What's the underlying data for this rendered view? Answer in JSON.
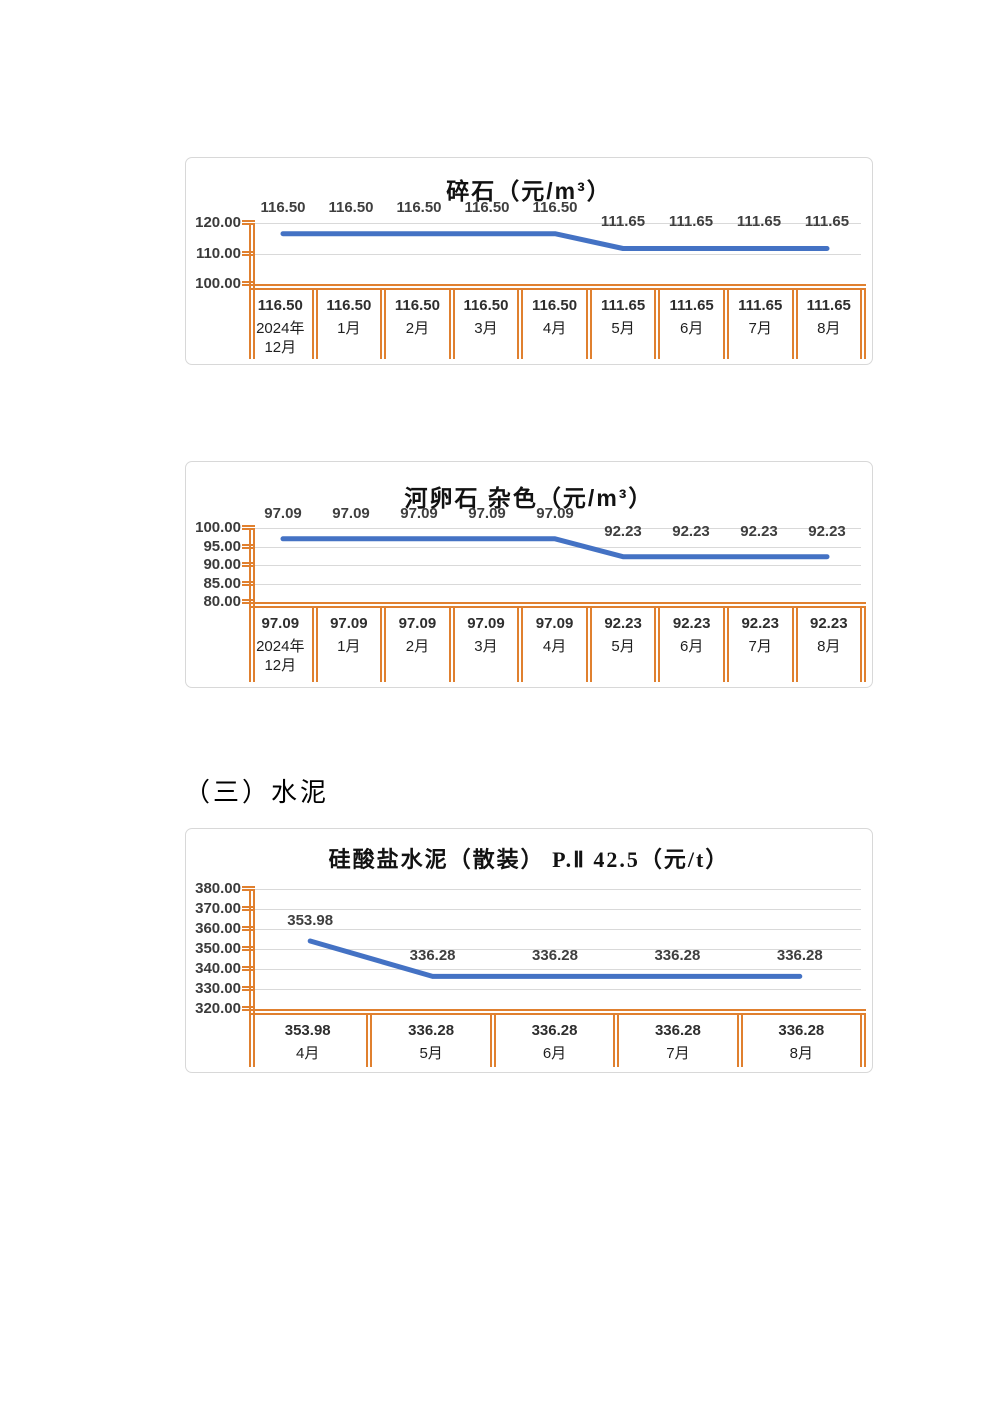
{
  "page": {
    "section_heading": "（三）水泥"
  },
  "colors": {
    "series_line": "#4472C4",
    "table_border": "#E0802F",
    "gridline": "#D9D9D9",
    "frame_border": "#D8D8D8"
  },
  "chart_data": [
    {
      "type": "line",
      "title": "碎石（元/m³）",
      "categories": [
        "2024年12月",
        "1月",
        "2月",
        "3月",
        "4月",
        "5月",
        "6月",
        "7月",
        "8月"
      ],
      "values": [
        116.5,
        116.5,
        116.5,
        116.5,
        116.5,
        111.65,
        111.65,
        111.65,
        111.65
      ],
      "value_labels": [
        "116.50",
        "116.50",
        "116.50",
        "116.50",
        "116.50",
        "111.65",
        "111.65",
        "111.65",
        "111.65"
      ],
      "y_ticks": [
        "120.00",
        "110.00",
        "100.00"
      ],
      "ylim": [
        100,
        120
      ],
      "grid": true,
      "legend": "none",
      "data_table_shown": true
    },
    {
      "type": "line",
      "title": "河卵石 杂色（元/m³）",
      "categories": [
        "2024年12月",
        "1月",
        "2月",
        "3月",
        "4月",
        "5月",
        "6月",
        "7月",
        "8月"
      ],
      "values": [
        97.09,
        97.09,
        97.09,
        97.09,
        97.09,
        92.23,
        92.23,
        92.23,
        92.23
      ],
      "value_labels": [
        "97.09",
        "97.09",
        "97.09",
        "97.09",
        "97.09",
        "92.23",
        "92.23",
        "92.23",
        "92.23"
      ],
      "y_ticks": [
        "100.00",
        "95.00",
        "90.00",
        "85.00",
        "80.00"
      ],
      "ylim": [
        80,
        100
      ],
      "grid": true,
      "legend": "none",
      "data_table_shown": true
    },
    {
      "type": "line",
      "title": "硅酸盐水泥（散装） P.Ⅱ 42.5（元/t）",
      "categories": [
        "4月",
        "5月",
        "6月",
        "7月",
        "8月"
      ],
      "values": [
        353.98,
        336.28,
        336.28,
        336.28,
        336.28
      ],
      "value_labels": [
        "353.98",
        "336.28",
        "336.28",
        "336.28",
        "336.28"
      ],
      "y_ticks": [
        "380.00",
        "370.00",
        "360.00",
        "350.00",
        "340.00",
        "330.00",
        "320.00"
      ],
      "ylim": [
        320,
        380
      ],
      "grid": true,
      "legend": "none",
      "data_table_shown": true
    }
  ]
}
